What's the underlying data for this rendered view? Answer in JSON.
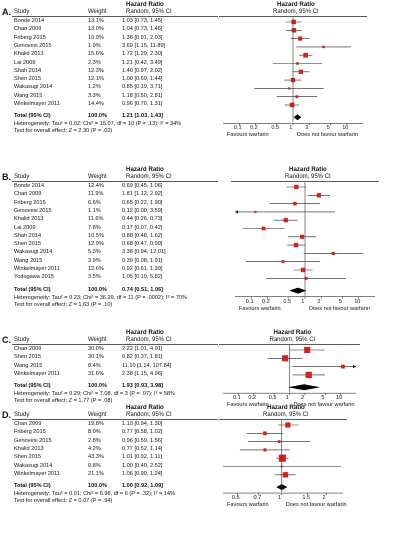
{
  "chart_data": [
    {
      "type": "forest",
      "panel": "A.",
      "header": {
        "col_study": "Study",
        "col_weight": "Weight",
        "col_hr": "Hazard Ratio",
        "col_hr_sub": "Random, 95% CI",
        "plot_hr": "Hazard Ratio",
        "plot_hr_sub": "Random, 95% CI"
      },
      "rows": [
        {
          "study": "Bonde 2014",
          "weight": "13.1%",
          "ci_text": "1.03 [0.73, 1.45]",
          "hr": 1.03,
          "lo": 0.73,
          "hi": 1.45
        },
        {
          "study": "Chan 2009",
          "weight": "13.0%",
          "ci_text": "1.04 [0.73, 1.46]",
          "hr": 1.04,
          "lo": 0.73,
          "hi": 1.46
        },
        {
          "study": "Friberg 2015",
          "weight": "10.9%",
          "ci_text": "1.36 [0.91, 2.03]",
          "hr": 1.36,
          "lo": 0.91,
          "hi": 2.03
        },
        {
          "study": "Genovesi 2015",
          "weight": "1.9%",
          "ci_text": "3.69 [1.15, 11.89]",
          "hr": 3.69,
          "lo": 1.15,
          "hi": 11.89
        },
        {
          "study": "Khalid 2013",
          "weight": "15.6%",
          "ci_text": "1.72 [1.29, 2.30]",
          "hr": 1.72,
          "lo": 1.29,
          "hi": 2.3
        },
        {
          "study": "Lai 2009",
          "weight": "2.3%",
          "ci_text": "1.21 [0.42, 3.49]",
          "hr": 1.21,
          "lo": 0.42,
          "hi": 3.49
        },
        {
          "study": "Shah 2014",
          "weight": "12.3%",
          "ci_text": "1.40 [0.97, 2.02]",
          "hr": 1.4,
          "lo": 0.97,
          "hi": 2.02
        },
        {
          "study": "Shen 2015",
          "weight": "12.1%",
          "ci_text": "1.00 [0.69, 1.44]",
          "hr": 1.0,
          "lo": 0.69,
          "hi": 1.44
        },
        {
          "study": "Wakasugi 2014",
          "weight": "1.2%",
          "ci_text": "0.85 [0.19, 3.71]",
          "hr": 0.85,
          "lo": 0.19,
          "hi": 3.71
        },
        {
          "study": "Wang 2015",
          "weight": "3.3%",
          "ci_text": "1.18 [0.50, 2.81]",
          "hr": 1.18,
          "lo": 0.5,
          "hi": 2.81
        },
        {
          "study": "Winkelmayer 2011",
          "weight": "14.4%",
          "ci_text": "0.96 [0.70, 1.31]",
          "hr": 0.96,
          "lo": 0.7,
          "hi": 1.31
        }
      ],
      "total": {
        "label": "Total (95% CI)",
        "weight": "100.0%",
        "ci_text": "1.21 [1.03, 1.43]",
        "hr": 1.21,
        "lo": 1.03,
        "hi": 1.43
      },
      "heterogeneity": "Heterogeneity: Tau² = 0.02; Chi² = 15.07, df = 10 (P = .13); I² = 34%",
      "overall": "Test for overall effect: Z = 2.30 (P = .02)",
      "xticks": [
        0.1,
        0.2,
        0.5,
        1,
        2,
        5,
        10
      ],
      "xtick_labels": [
        "0.1",
        "0.2",
        "0.5",
        "1",
        "2",
        "5",
        "10"
      ],
      "favours_left": "Favours warfarin",
      "favours_right": "Does not favour warfarin"
    },
    {
      "type": "forest",
      "panel": "B.",
      "header": {
        "col_study": "Study",
        "col_weight": "Weight",
        "col_hr": "Hazard Ratio",
        "col_hr_sub": "Random, 95% CI",
        "plot_hr": "Hazard Ratio",
        "plot_hr_sub": "Random, 95% CI"
      },
      "rows": [
        {
          "study": "Bonde 2014",
          "weight": "12.4%",
          "ci_text": "0.69 [0.45, 1.06]",
          "hr": 0.69,
          "lo": 0.45,
          "hi": 1.06
        },
        {
          "study": "Chan 2009",
          "weight": "11.9%",
          "ci_text": "1.81 [1.12, 2.92]",
          "hr": 1.81,
          "lo": 1.12,
          "hi": 2.92
        },
        {
          "study": "Friberg 2015",
          "weight": "6.6%",
          "ci_text": "0.65 [0.22, 1.90]",
          "hr": 0.65,
          "lo": 0.22,
          "hi": 1.9
        },
        {
          "study": "Genovesi 2015",
          "weight": "1.1%",
          "ci_text": "0.12 [0.00, 3.59]",
          "hr": 0.12,
          "lo": 0.0,
          "hi": 3.59
        },
        {
          "study": "Khalid 2013",
          "weight": "11.6%",
          "ci_text": "0.44 [0.26, 0.73]",
          "hr": 0.44,
          "lo": 0.26,
          "hi": 0.73
        },
        {
          "study": "Lai 2009",
          "weight": "7.8%",
          "ci_text": "0.17 [0.07, 0.42]",
          "hr": 0.17,
          "lo": 0.07,
          "hi": 0.42
        },
        {
          "study": "Shah 2014",
          "weight": "10.5%",
          "ci_text": "0.88 [0.48, 1.62]",
          "hr": 0.88,
          "lo": 0.48,
          "hi": 1.62
        },
        {
          "study": "Shen 2015",
          "weight": "12.9%",
          "ci_text": "0.68 [0.47, 0.99]",
          "hr": 0.68,
          "lo": 0.47,
          "hi": 0.99
        },
        {
          "study": "Wakasugi 2014",
          "weight": "5.3%",
          "ci_text": "3.36 [0.94, 12.01]",
          "hr": 3.36,
          "lo": 0.94,
          "hi": 12.01
        },
        {
          "study": "Wang 2015",
          "weight": "3.9%",
          "ci_text": "0.39 [0.08, 1.91]",
          "hr": 0.39,
          "lo": 0.08,
          "hi": 1.91
        },
        {
          "study": "Winkelmayer 2011",
          "weight": "12.6%",
          "ci_text": "0.92 [0.61, 1.39]",
          "hr": 0.92,
          "lo": 0.61,
          "hi": 1.39
        },
        {
          "study": "Yodogawa 2015",
          "weight": "3.5%",
          "ci_text": "1.05 [0.19, 5.82]",
          "hr": 1.05,
          "lo": 0.19,
          "hi": 5.82
        }
      ],
      "total": {
        "label": "Total (95% CI)",
        "weight": "100.0%",
        "ci_text": "0.74 [0.51, 1.06]",
        "hr": 0.74,
        "lo": 0.51,
        "hi": 1.06
      },
      "heterogeneity": "Heterogeneity: Tau² = 0.23; Chi² = 36.29, df = 11 (P = .0002); I² = 70%",
      "overall": "Test for overall effect: Z = 1.63 (P = .10)",
      "xticks": [
        0.1,
        0.2,
        0.5,
        1,
        2,
        5,
        10
      ],
      "xtick_labels": [
        "0.1",
        "0.2",
        "0.5",
        "1",
        "2",
        "5",
        "10"
      ],
      "favours_left": "Favours warfarin",
      "favours_right": "Does not favour warfarin"
    },
    {
      "type": "forest",
      "panel": "C.",
      "header": {
        "col_study": "Study",
        "col_weight": "Weight",
        "col_hr": "Hazard Ratio",
        "col_hr_sub": "Random, 95% CI",
        "plot_hr": "Hazard Ratio",
        "plot_hr_sub": "Random, 95% CI"
      },
      "rows": [
        {
          "study": "Chan 2009",
          "weight": "30.0%",
          "ci_text": "2.22 [1.01, 4.91]",
          "hr": 2.22,
          "lo": 1.01,
          "hi": 4.91
        },
        {
          "study": "Shen 2015",
          "weight": "30.1%",
          "ci_text": "0.82 [0.37, 1.81]",
          "hr": 0.82,
          "lo": 0.37,
          "hi": 1.81
        },
        {
          "study": "Wang 2015",
          "weight": "8.4%",
          "ci_text": "11.10 [1.14, 107.84]",
          "hr": 11.1,
          "lo": 1.14,
          "hi": 107.84
        },
        {
          "study": "Winkelmayer 2011",
          "weight": "31.6%",
          "ci_text": "2.38 [1.15, 4.96]",
          "hr": 2.38,
          "lo": 1.15,
          "hi": 4.96
        }
      ],
      "total": {
        "label": "Total (95% CI)",
        "weight": "100.0%",
        "ci_text": "1.93 [0.93, 3.98]",
        "hr": 1.93,
        "lo": 0.93,
        "hi": 3.98
      },
      "heterogeneity": "Heterogeneity: Tau² = 0.29; Chi² = 7.08, df = 3 (P = .07); I² = 58%",
      "overall": "Test for overall effect: Z = 1.77 (P = .08)",
      "xticks": [
        0.1,
        0.2,
        0.5,
        1,
        2,
        5,
        10
      ],
      "xtick_labels": [
        "0.1",
        "0.2",
        "0.5",
        "1",
        "2",
        "5",
        "10"
      ],
      "favours_left": "Favours warfarin",
      "favours_right": "Does not favour warfarin"
    },
    {
      "type": "forest",
      "panel": "D.",
      "header": {
        "col_study": "Study",
        "col_weight": "Weight",
        "col_hr": "Hazard Ratio",
        "col_hr_sub": "Random, 95% CI",
        "plot_hr": "Hazard Ratio",
        "plot_hr_sub": "Random, 95% CI"
      },
      "rows": [
        {
          "study": "Chan 2009",
          "weight": "19.8%",
          "ci_text": "1.10 [0.94, 1.30]",
          "hr": 1.1,
          "lo": 0.94,
          "hi": 1.3
        },
        {
          "study": "Friberg 2015",
          "weight": "8.0%",
          "ci_text": "0.77 [0.58, 1.02]",
          "hr": 0.77,
          "lo": 0.58,
          "hi": 1.02
        },
        {
          "study": "Genovesi 2015",
          "weight": "2.8%",
          "ci_text": "0.96 [0.59, 1.56]",
          "hr": 0.96,
          "lo": 0.59,
          "hi": 1.56
        },
        {
          "study": "Khalid 2013",
          "weight": "4.2%",
          "ci_text": "0.77 [0.52, 1.14]",
          "hr": 0.77,
          "lo": 0.52,
          "hi": 1.14
        },
        {
          "study": "Shen 2015",
          "weight": "43.3%",
          "ci_text": "1.01 [0.92, 1.11]",
          "hr": 1.01,
          "lo": 0.92,
          "hi": 1.11
        },
        {
          "study": "Wakasugi 2014",
          "weight": "0.8%",
          "ci_text": "1.00 [0.40, 2.52]",
          "hr": 1.0,
          "lo": 0.4,
          "hi": 2.52
        },
        {
          "study": "Winkelmayer 2011",
          "weight": "21.1%",
          "ci_text": "1.06 [0.90, 1.24]",
          "hr": 1.06,
          "lo": 0.9,
          "hi": 1.24
        }
      ],
      "total": {
        "label": "Total (95% CI)",
        "weight": "100.0%",
        "ci_text": "1.00 [0.92, 1.09]",
        "hr": 1.0,
        "lo": 0.92,
        "hi": 1.09
      },
      "heterogeneity": "Heterogeneity: Tau² = 0.01; Chi² = 6.98, df = 6 (P = .32); I² = 14%",
      "overall": "Test for overall effect: Z = 0.07 (P = .94)",
      "xticks": [
        0.5,
        0.7,
        1,
        1.5,
        2
      ],
      "xtick_labels": [
        "0.5",
        "0.7",
        "1",
        "1.5",
        "2"
      ],
      "favours_left": "Favours warfarin",
      "favours_right": "Does not favour warfarin"
    }
  ],
  "colors": {
    "study_square": "#d62020",
    "ci_line": "#222222",
    "axis": "#333333",
    "rule": "#222222",
    "diamond": "#000000"
  }
}
